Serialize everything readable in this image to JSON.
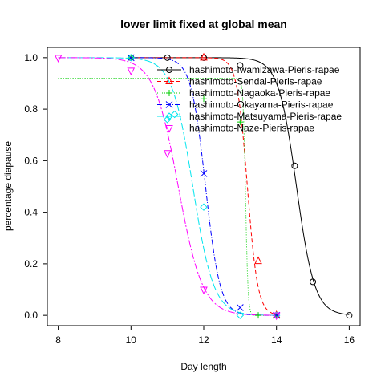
{
  "chart_data": {
    "type": "line",
    "title": "lower limit fixed at global mean",
    "xlabel": "Day length",
    "ylabel": "percentage diapause",
    "xlim": [
      7.7,
      16.3
    ],
    "ylim": [
      -0.04,
      1.04
    ],
    "xticks": [
      "8",
      "10",
      "12",
      "14",
      "16"
    ],
    "yticks": [
      "0.0",
      "0.2",
      "0.4",
      "0.6",
      "0.8",
      "1.0"
    ],
    "legend_position": "top-right",
    "series": [
      {
        "name": "hashimoto-Iwamizawa-Pieris-rapae",
        "color": "#000000",
        "dash": "",
        "marker": "circle",
        "curve": {
          "upper": 1.0,
          "lower": 0.0,
          "midpoint": 14.55,
          "slope": 4.0,
          "from": 10.0,
          "to": 16.0
        },
        "points": [
          [
            10,
            1.0
          ],
          [
            11,
            1.0
          ],
          [
            12,
            1.0
          ],
          [
            13,
            0.97
          ],
          [
            14.5,
            0.58
          ],
          [
            15,
            0.13
          ],
          [
            16,
            0.0
          ]
        ]
      },
      {
        "name": "hashimoto-Sendai-Pieris-rapae",
        "color": "#ff0000",
        "dash": "5,3",
        "marker": "triangle-up",
        "curve": {
          "upper": 1.0,
          "lower": 0.0,
          "midpoint": 13.2,
          "slope": 7.0,
          "from": 10.0,
          "to": 14.0
        },
        "points": [
          [
            12,
            1.0
          ],
          [
            13.5,
            0.21
          ],
          [
            14,
            0.0
          ]
        ]
      },
      {
        "name": "hashimoto-Nagaoka-Pieris-rapae",
        "color": "#00cd00",
        "dash": "1,2",
        "marker": "plus",
        "curve": {
          "upper": 0.92,
          "lower": 0.0,
          "midpoint": 13.15,
          "slope": 30.0,
          "from": 8.0,
          "to": 14.0
        },
        "points": [
          [
            10,
            1.0
          ],
          [
            12,
            0.84
          ],
          [
            13,
            0.75
          ],
          [
            13.5,
            0.0
          ],
          [
            14,
            0.0
          ]
        ]
      },
      {
        "name": "hashimoto-Okayama-Pieris-rapae",
        "color": "#0000ff",
        "dash": "6,2,1,2",
        "marker": "x",
        "curve": {
          "upper": 1.0,
          "lower": 0.0,
          "midpoint": 12.05,
          "slope": 5.0,
          "from": 10.0,
          "to": 14.0
        },
        "points": [
          [
            10,
            1.0
          ],
          [
            12,
            0.55
          ],
          [
            13,
            0.03
          ],
          [
            14,
            0.0
          ]
        ]
      },
      {
        "name": "hashimoto-Matsuyama-Pieris-rapae",
        "color": "#00e5ee",
        "dash": "9,3",
        "marker": "diamond",
        "curve": {
          "upper": 1.0,
          "lower": 0.0,
          "midpoint": 11.7,
          "slope": 3.5,
          "from": 8.0,
          "to": 14.0
        },
        "points": [
          [
            10,
            1.0
          ],
          [
            11,
            0.76
          ],
          [
            11.2,
            0.78
          ],
          [
            12,
            0.42
          ],
          [
            13,
            0.0
          ],
          [
            14,
            0.0
          ]
        ]
      },
      {
        "name": "hashimoto-Naze-Pieris-rapae",
        "color": "#ff00ff",
        "dash": "9,2,2,2",
        "marker": "triangle-down",
        "curve": {
          "upper": 1.0,
          "lower": 0.0,
          "midpoint": 11.3,
          "slope": 3.0,
          "from": 8.0,
          "to": 14.0
        },
        "points": [
          [
            8,
            1.0
          ],
          [
            10,
            0.95
          ],
          [
            11,
            0.63
          ],
          [
            12,
            0.1
          ],
          [
            14,
            0.0
          ]
        ]
      }
    ]
  }
}
